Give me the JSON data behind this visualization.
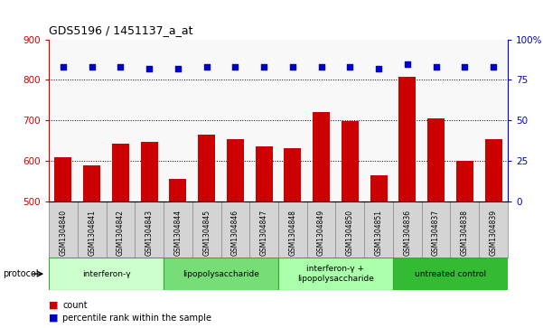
{
  "title": "GDS5196 / 1451137_a_at",
  "samples": [
    "GSM1304840",
    "GSM1304841",
    "GSM1304842",
    "GSM1304843",
    "GSM1304844",
    "GSM1304845",
    "GSM1304846",
    "GSM1304847",
    "GSM1304848",
    "GSM1304849",
    "GSM1304850",
    "GSM1304851",
    "GSM1304836",
    "GSM1304837",
    "GSM1304838",
    "GSM1304839"
  ],
  "counts": [
    610,
    590,
    643,
    647,
    557,
    665,
    655,
    636,
    632,
    720,
    698,
    564,
    808,
    706,
    600,
    655
  ],
  "percentile_ranks": [
    83,
    83,
    83,
    82,
    82,
    83,
    83,
    83,
    83,
    83,
    83,
    82,
    85,
    83,
    83,
    83
  ],
  "ylim_left": [
    500,
    900
  ],
  "ylim_right": [
    0,
    100
  ],
  "yticks_left": [
    500,
    600,
    700,
    800,
    900
  ],
  "yticks_right": [
    0,
    25,
    50,
    75,
    100
  ],
  "bar_color": "#cc0000",
  "dot_color": "#0000cc",
  "bar_width": 0.6,
  "groups": [
    {
      "label": "interferon-γ",
      "start": 0,
      "end": 3,
      "color": "#ccffcc"
    },
    {
      "label": "lipopolysaccharide",
      "start": 4,
      "end": 7,
      "color": "#77dd77"
    },
    {
      "label": "interferon-γ +\nlipopolysaccharide",
      "start": 8,
      "end": 11,
      "color": "#aaffaa"
    },
    {
      "label": "untreated control",
      "start": 12,
      "end": 15,
      "color": "#33bb33"
    }
  ],
  "legend_count_label": "count",
  "legend_percentile_label": "percentile rank within the sample",
  "protocol_label": "protocol",
  "bg_color": "#ffffff",
  "sample_box_color": "#d4d4d4",
  "ylabel_left_color": "#cc0000",
  "ylabel_right_color": "#0000cc"
}
